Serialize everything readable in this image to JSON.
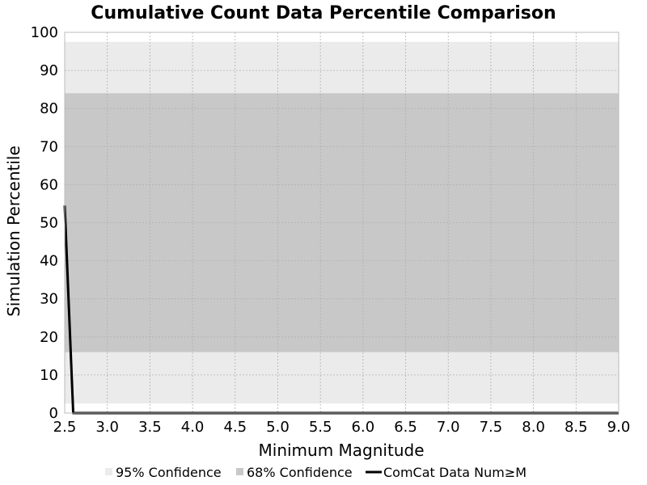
{
  "chart_data": {
    "type": "line",
    "title": "Cumulative Count Data Percentile Comparison",
    "xlabel": "Minimum Magnitude",
    "ylabel": "Simulation Percentile",
    "xlim": [
      2.5,
      9.0
    ],
    "ylim": [
      0,
      100
    ],
    "x_ticks": [
      "2.5",
      "3.0",
      "3.5",
      "4.0",
      "4.5",
      "5.0",
      "5.5",
      "6.0",
      "6.5",
      "7.0",
      "7.5",
      "8.0",
      "8.5",
      "9.0"
    ],
    "y_ticks": [
      "0",
      "10",
      "20",
      "30",
      "40",
      "50",
      "60",
      "70",
      "80",
      "90",
      "100"
    ],
    "grid": true,
    "legend_position": "bottom",
    "bands": [
      {
        "name": "95% Confidence",
        "lower": 2.5,
        "upper": 97.5,
        "color": "#ebebeb"
      },
      {
        "name": "68% Confidence",
        "lower": 16,
        "upper": 84,
        "color": "#c8c8c8"
      }
    ],
    "series": [
      {
        "name": "ComCat Data Num≥M",
        "color": "#000000",
        "x": [
          2.5,
          2.6,
          2.7,
          2.8,
          2.9,
          3.0,
          3.5,
          4.0,
          4.5,
          5.0,
          5.5,
          6.0,
          6.5,
          7.0,
          7.5,
          8.0,
          8.5,
          9.0
        ],
        "y": [
          54.5,
          0,
          0,
          0,
          0,
          0,
          0,
          0,
          0,
          0,
          0,
          0,
          0,
          0,
          0,
          0,
          0,
          0
        ]
      }
    ],
    "legend": [
      {
        "label": "95% Confidence",
        "color": "#ebebeb",
        "kind": "box"
      },
      {
        "label": "68% Confidence",
        "color": "#c8c8c8",
        "kind": "box"
      },
      {
        "label": "ComCat Data Num≥M",
        "color": "#000000",
        "kind": "line"
      }
    ]
  }
}
